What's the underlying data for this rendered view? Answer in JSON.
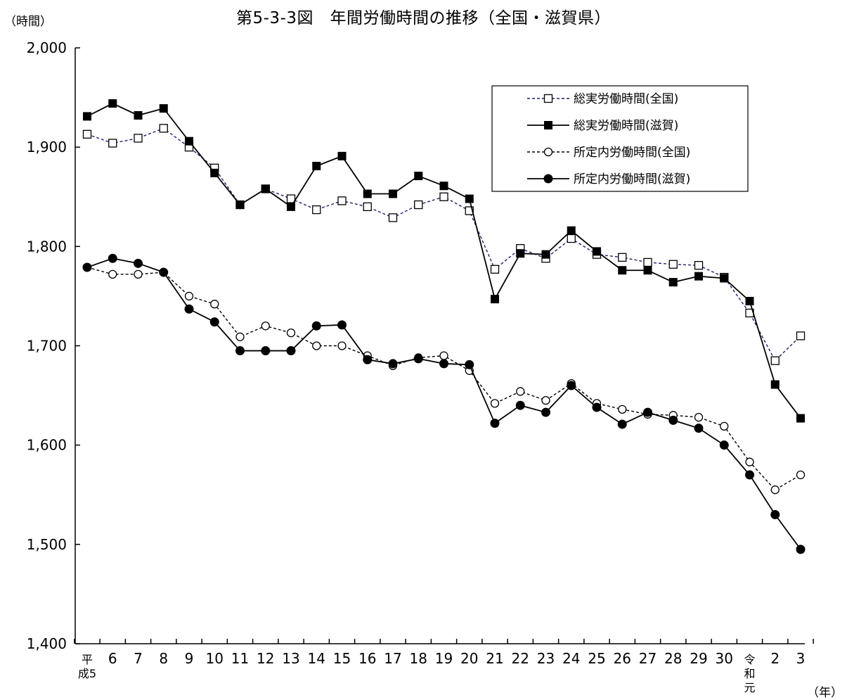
{
  "chart_data": {
    "type": "line",
    "title": "第5-3-3図　年間労働時間の推移（全国・滋賀県）",
    "ylabel": "（時間）",
    "xlabel": "（年）",
    "ylim": [
      1400,
      2000
    ],
    "yticks": [
      "1,400",
      "1,500",
      "1,600",
      "1,700",
      "1,800",
      "1,900",
      "2,000"
    ],
    "ytick_values": [
      1400,
      1500,
      1600,
      1700,
      1800,
      1900,
      2000
    ],
    "categories": [
      [
        "平",
        "成5"
      ],
      [
        "6"
      ],
      [
        "7"
      ],
      [
        "8"
      ],
      [
        "9"
      ],
      [
        "10"
      ],
      [
        "11"
      ],
      [
        "12"
      ],
      [
        "13"
      ],
      [
        "14"
      ],
      [
        "15"
      ],
      [
        "16"
      ],
      [
        "17"
      ],
      [
        "18"
      ],
      [
        "19"
      ],
      [
        "20"
      ],
      [
        "21"
      ],
      [
        "22"
      ],
      [
        "23"
      ],
      [
        "24"
      ],
      [
        "25"
      ],
      [
        "26"
      ],
      [
        "27"
      ],
      [
        "28"
      ],
      [
        "29"
      ],
      [
        "30"
      ],
      [
        "令",
        "和",
        "元"
      ],
      [
        "2"
      ],
      [
        "3"
      ]
    ],
    "series": [
      {
        "name": "総実労働時間(全国)",
        "marker": "open-square",
        "line": "dashed",
        "color": "#1f1f6e",
        "values": [
          1913,
          1904,
          1909,
          1919,
          1900,
          1879,
          1842,
          1858,
          1848,
          1837,
          1846,
          1840,
          1829,
          1842,
          1850,
          1836,
          1777,
          1798,
          1788,
          1808,
          1792,
          1789,
          1784,
          1782,
          1781,
          1769,
          1733,
          1685,
          1710
        ]
      },
      {
        "name": "総実労働時間(滋賀)",
        "marker": "filled-square",
        "line": "solid",
        "color": "#000000",
        "values": [
          1931,
          1944,
          1932,
          1939,
          1906,
          1874,
          1842,
          1858,
          1840,
          1881,
          1891,
          1853,
          1853,
          1871,
          1861,
          1848,
          1747,
          1793,
          1792,
          1816,
          1795,
          1776,
          1776,
          1764,
          1770,
          1768,
          1745,
          1661,
          1627
        ]
      },
      {
        "name": "所定内労働時間(全国)",
        "marker": "open-circle",
        "line": "dashed",
        "color": "#000000",
        "values": [
          1779,
          1772,
          1772,
          1774,
          1750,
          1742,
          1709,
          1720,
          1713,
          1700,
          1700,
          1690,
          1680,
          1688,
          1690,
          1675,
          1642,
          1654,
          1645,
          1662,
          1642,
          1636,
          1631,
          1630,
          1628,
          1619,
          1583,
          1555,
          1570
        ]
      },
      {
        "name": "所定内労働時間(滋賀)",
        "marker": "filled-circle",
        "line": "solid",
        "color": "#000000",
        "values": [
          1779,
          1788,
          1783,
          1774,
          1737,
          1724,
          1695,
          1695,
          1695,
          1720,
          1721,
          1686,
          1682,
          1687,
          1682,
          1681,
          1622,
          1640,
          1633,
          1660,
          1638,
          1621,
          1633,
          1625,
          1617,
          1600,
          1570,
          1530,
          1495
        ]
      }
    ],
    "legend_position": "top-right"
  }
}
